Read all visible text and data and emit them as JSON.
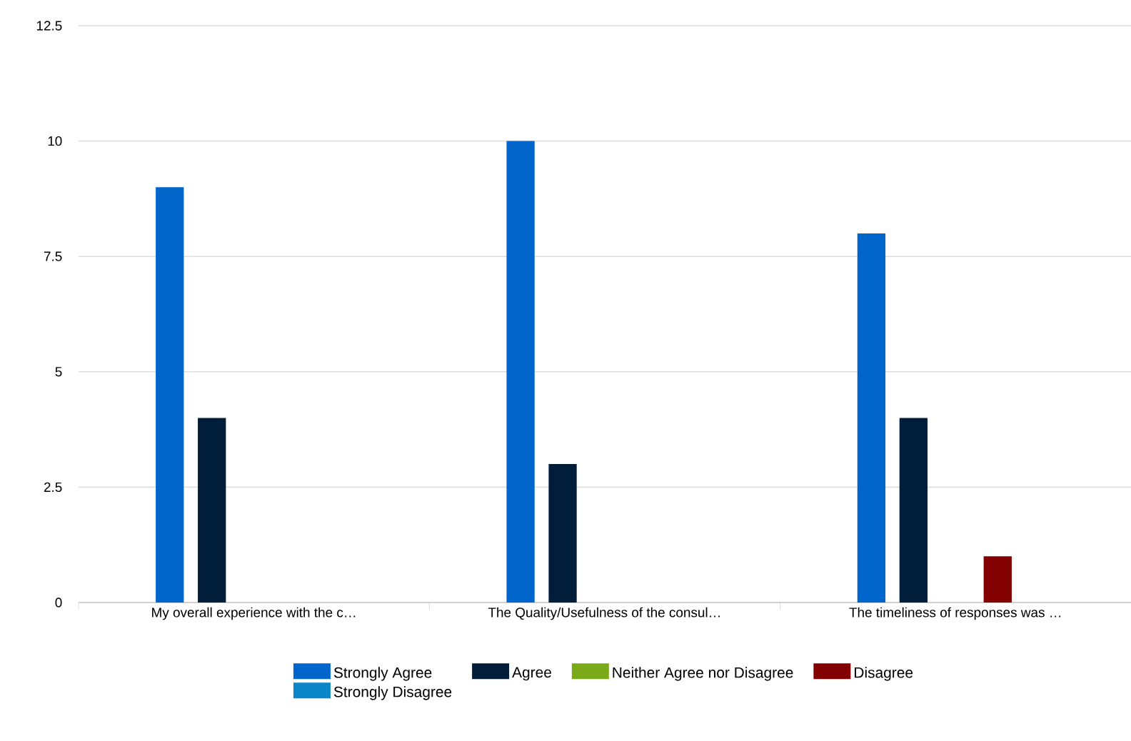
{
  "chart_data": {
    "type": "bar",
    "categories": [
      "My overall experience with the c…",
      "The Quality/Usefulness of the consul…",
      "The timeliness of responses was …"
    ],
    "series": [
      {
        "name": "Strongly Agree",
        "color": "#0066cc",
        "values": [
          9,
          10,
          8
        ]
      },
      {
        "name": "Agree",
        "color": "#001e3a",
        "values": [
          4,
          3,
          4
        ]
      },
      {
        "name": "Neither Agree nor Disagree",
        "color": "#7aa91a",
        "values": [
          0,
          0,
          0
        ]
      },
      {
        "name": "Disagree",
        "color": "#820000",
        "values": [
          0,
          0,
          1
        ]
      },
      {
        "name": "Strongly Disagree",
        "color": "#0a85c8",
        "values": [
          0,
          0,
          0
        ]
      }
    ],
    "ylim": [
      0,
      12.5
    ],
    "yticks": [
      0,
      2.5,
      5,
      7.5,
      10,
      12.5
    ],
    "grid": "y",
    "legend": "bottom"
  }
}
